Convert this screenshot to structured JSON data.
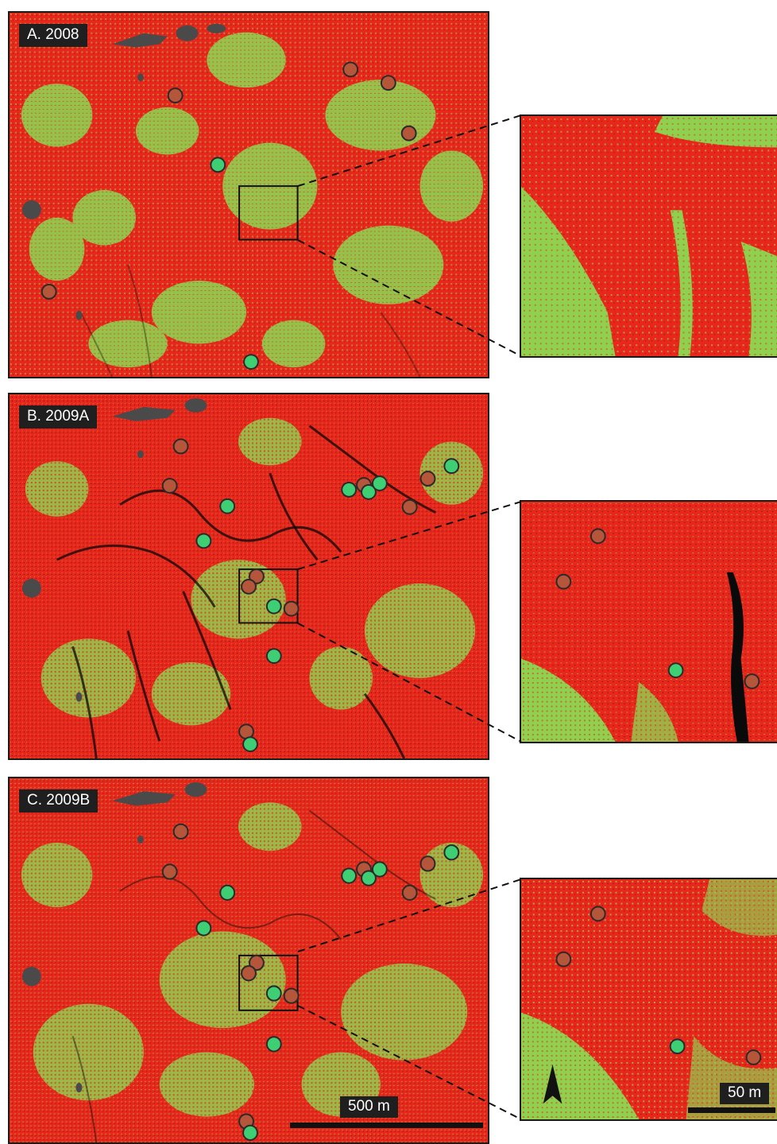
{
  "colors": {
    "red": "#e8261c",
    "green": "#8fd14f",
    "black": "#0a0a0a",
    "water": "#4a4a4a",
    "marker_brown": "#b5563a",
    "marker_green": "#3ecf74",
    "frame": "#1a1a1a",
    "label_bg": "#1f1f1f"
  },
  "panels": [
    {
      "label": "A. 2008",
      "density": "low"
    },
    {
      "label": "B. 2009A",
      "density": "high"
    },
    {
      "label": "C. 2009B",
      "density": "mid"
    }
  ],
  "scale_main": {
    "label": "500 m"
  },
  "scale_inset": {
    "label": "50 m"
  },
  "north_arrow": {
    "icon": "north-arrow-icon"
  }
}
